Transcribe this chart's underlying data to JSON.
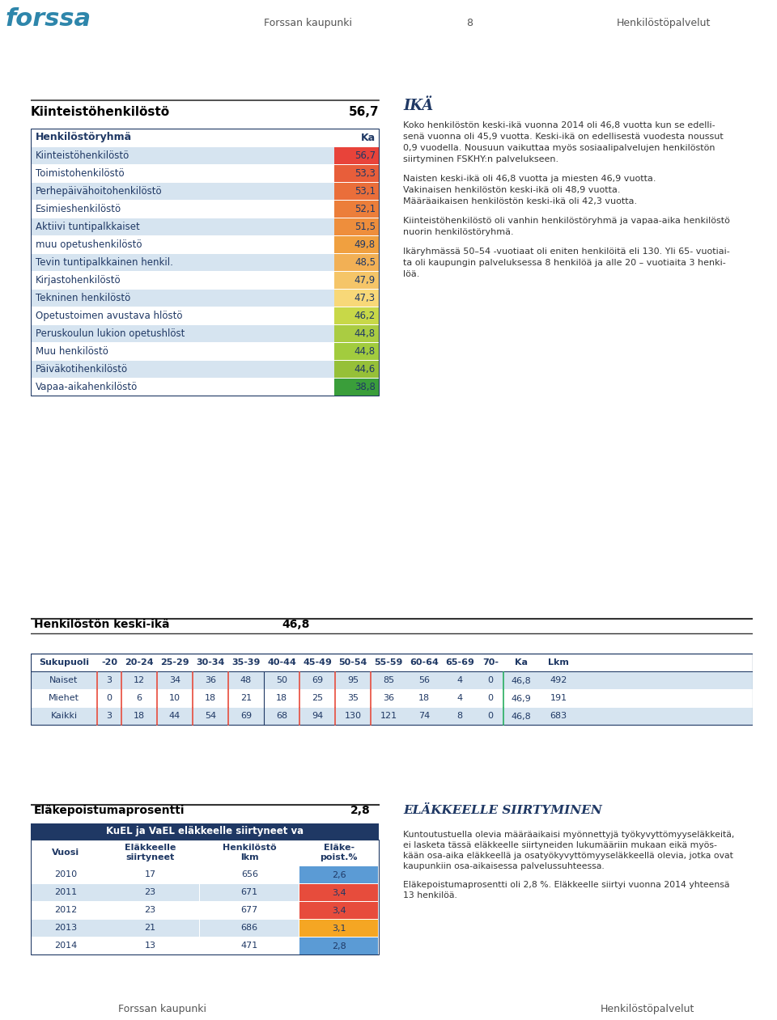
{
  "page_header_left": "Forssan kaupunki",
  "page_header_center": "8",
  "page_header_right": "Henkilöstöpalvelut",
  "page_footer_left": "Forssan kaupunki",
  "page_footer_right": "Henkilöstöpalvelut",
  "section1_title": "Kiinteistöhenkilöstö",
  "section1_value": "56,7",
  "table1_header": [
    "Henkilöstöryhmä",
    "Ka"
  ],
  "table1_rows": [
    [
      "Kiinteistöhenkilöstö",
      "56,7"
    ],
    [
      "Toimistohenkilöstö",
      "53,3"
    ],
    [
      "Perhepäivähoitohenkilöstö",
      "53,1"
    ],
    [
      "Esimieshenkilöstö",
      "52,1"
    ],
    [
      "Aktiivi tuntipalkkaiset",
      "51,5"
    ],
    [
      "muu opetushenkilöstö",
      "49,8"
    ],
    [
      "Tevin tuntipalkkainen henkil.",
      "48,5"
    ],
    [
      "Kirjastohenkilöstö",
      "47,9"
    ],
    [
      "Tekninen henkilöstö",
      "47,3"
    ],
    [
      "Opetustoimen avustava hlöstö",
      "46,2"
    ],
    [
      "Peruskoulun lukion opetushlöst",
      "44,8"
    ],
    [
      "Muu henkilöstö",
      "44,8"
    ],
    [
      "Päiväkotihenkilöstö",
      "44,6"
    ],
    [
      "Vapaa-aikahenkilöstö",
      "38,8"
    ]
  ],
  "table1_value_colors": [
    "#E8433A",
    "#E85E3A",
    "#EA6E3A",
    "#EC7E3A",
    "#EE8E3C",
    "#F0A040",
    "#F2B055",
    "#F5C568",
    "#F8D878",
    "#C8D848",
    "#AACC42",
    "#A2CC3E",
    "#96C038",
    "#3A9E3A"
  ],
  "table1_row_colors": [
    "#D6E4F0",
    "#FFFFFF",
    "#D6E4F0",
    "#FFFFFF",
    "#D6E4F0",
    "#FFFFFF",
    "#D6E4F0",
    "#FFFFFF",
    "#D6E4F0",
    "#FFFFFF",
    "#D6E4F0",
    "#FFFFFF",
    "#D6E4F0",
    "#FFFFFF"
  ],
  "ika_title": "IKÄ",
  "ika_text1": "Koko henkilöstön keski-ikä vuonna 2014 oli 46,8 vuotta kun se edelli-\nsenä vuonna oli 45,9 vuotta. Keski-ikä on edellisestä vuodesta noussut\n0,9 vuodella. Nousuun vaikuttaa myös sosiaalipalvelujen henkilöstön\nsiirtyminen FSKHY:n palvelukseen.",
  "ika_text2": "Naisten keski-ikä oli 46,8 vuotta ja miesten 46,9 vuotta.\nVakinaisen henkilöstön keski-ikä oli 48,9 vuotta.\nMääräaikaisen henkilöstön keski-ikä oli 42,3 vuotta.",
  "ika_text3": "Kiinteistöhenkilöstö oli vanhin henkilöstöryhmä ja vapaa-aika henkilöstö\nnuorin henkilöstöryhmä.",
  "ika_text4": "Ikäryhmässä 50–54 -vuotiaat oli eniten henkilöitä eli 130. Yli 65- vuotiai-\nta oli kaupungin palveluksessa 8 henkilöä ja alle 20 – vuotiaita 3 henki-\nlöä.",
  "section2_title": "Henkilöstön keski-ikä",
  "section2_value": "46,8",
  "table2_header": [
    "Sukupuoli",
    "-20",
    "20-24",
    "25-29",
    "30-34",
    "35-39",
    "40-44",
    "45-49",
    "50-54",
    "55-59",
    "60-64",
    "65-69",
    "70-",
    "Ka",
    "Lkm"
  ],
  "table2_rows": [
    [
      "Naiset",
      "3",
      "12",
      "34",
      "36",
      "48",
      "50",
      "69",
      "95",
      "85",
      "56",
      "4",
      "0",
      "46,8",
      "492"
    ],
    [
      "Miehet",
      "0",
      "6",
      "10",
      "18",
      "21",
      "18",
      "25",
      "35",
      "36",
      "18",
      "4",
      "0",
      "46,9",
      "191"
    ],
    [
      "Kaikki",
      "3",
      "18",
      "44",
      "54",
      "69",
      "68",
      "94",
      "130",
      "121",
      "74",
      "8",
      "0",
      "46,8",
      "683"
    ]
  ],
  "table2_row_colors": [
    "#D6E4F0",
    "#FFFFFF",
    "#D6E4F0"
  ],
  "elake_title": "Eläkepoistumaprosentti",
  "elake_value": "2,8",
  "table3_title": "KuEL ja VaEL eläkkeelle siirtyneet va",
  "table3_header": [
    "Vuosi",
    "Eläkkeelle\nsiirtyneet",
    "Henkilöstö\nlkm",
    "Eläke-\npoist.%"
  ],
  "table3_rows": [
    [
      "2010",
      "17",
      "656",
      "2,6"
    ],
    [
      "2011",
      "23",
      "671",
      "3,4"
    ],
    [
      "2012",
      "23",
      "677",
      "3,4"
    ],
    [
      "2013",
      "21",
      "686",
      "3,1"
    ],
    [
      "2014",
      "13",
      "471",
      "2,8"
    ]
  ],
  "table3_value_colors": [
    "#5B9BD5",
    "#E74C3C",
    "#E74C3C",
    "#F5A623",
    "#5B9BD5"
  ],
  "table3_row_colors": [
    "#FFFFFF",
    "#D6E4F0",
    "#FFFFFF",
    "#D6E4F0",
    "#FFFFFF"
  ],
  "elake_siirtyminen_title": "Eläkkeelle siirtyminen",
  "elake_text1": "Kuntoutustuella olevia määräaikaisi myönnettyjä työkyvyttömyyseläkkeitä,\nei lasketa tässä eläkkeelle siirtyneiden lukumääriin mukaan eikä myös-\nkään osa-aika eläkkeellä ja osatyökyvyttömyyseläkkeellä olevia, jotka ovat\nkaupunkiin osa-aikaisessa palvelussuhteessa.",
  "elake_text2": "Eläkepoistumaprosentti oli 2,8 %. Eläkkeelle siirtyi vuonna 2014 yhteensä\n13 henkilöä.",
  "bg_color": "#FFFFFF",
  "header_bg": "#BEBEBE",
  "dark_blue": "#1F3864",
  "body_text": "#333333"
}
